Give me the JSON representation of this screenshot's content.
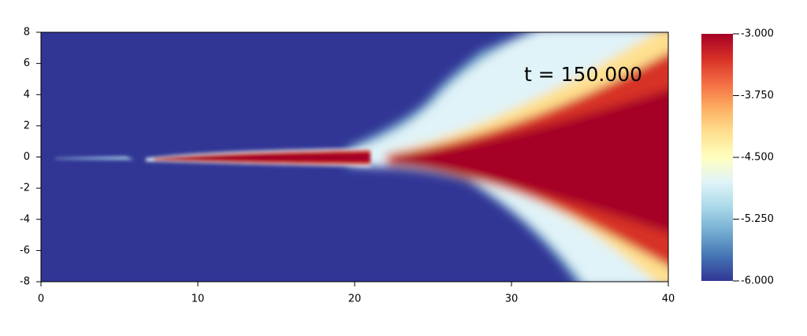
{
  "chart_data": {
    "type": "heatmap",
    "annotation": "t = 150.000",
    "xlim": [
      0,
      40
    ],
    "xticks": [
      0,
      10,
      20,
      30,
      40
    ],
    "ylim": [
      -8,
      8
    ],
    "yticks": [
      -8,
      -6,
      -4,
      -2,
      0,
      2,
      4,
      6,
      8
    ],
    "colorbar": {
      "lim": [
        -6,
        -3
      ],
      "colors": [
        "#313695",
        "#4575b4",
        "#74add1",
        "#abd9e9",
        "#e0f3f8",
        "#ffffbf",
        "#fee090",
        "#fdae61",
        "#f46d43",
        "#d73027",
        "#a50026"
      ],
      "ticks": [
        {
          "value": -6,
          "label": "-6.000"
        },
        {
          "value": -5.25,
          "label": "-5.250"
        },
        {
          "value": -4.5,
          "label": "-4.500"
        },
        {
          "value": -3.75,
          "label": "-3.750"
        },
        {
          "value": -3,
          "label": "-3.000"
        }
      ]
    }
  }
}
